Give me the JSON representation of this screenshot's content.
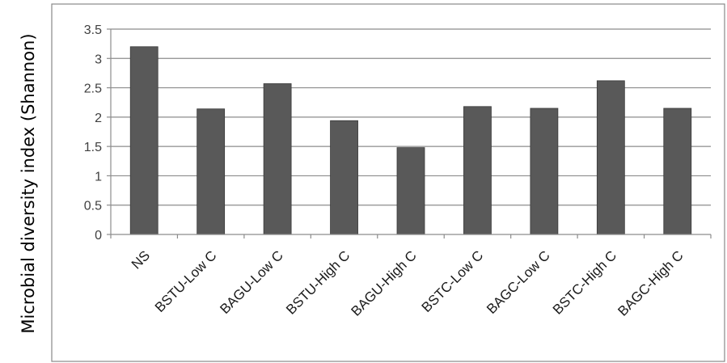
{
  "chart_data": {
    "type": "bar",
    "title": "",
    "xlabel": "",
    "ylabel": "Microbial diversity index (Shannon)",
    "categories": [
      "NS",
      "BSTU-Low C",
      "BAGU-Low C",
      "BSTU-High C",
      "BAGU-High C",
      "BSTC-Low C",
      "BAGC-Low C",
      "BSTC-High C",
      "BAGC-High C"
    ],
    "values": [
      3.2,
      2.14,
      2.57,
      1.94,
      1.48,
      2.18,
      2.15,
      2.62,
      2.15
    ],
    "ylim": [
      0,
      3.5
    ],
    "yticks": [
      "0",
      "0.5",
      "1",
      "1.5",
      "2",
      "2.5",
      "3",
      "3.5"
    ],
    "grid": true,
    "legend": "none",
    "colors": {
      "bar": "#595959",
      "bar_edge": "#3a3a3a",
      "grid": "#8c8c8c",
      "frame": "#888888"
    }
  }
}
